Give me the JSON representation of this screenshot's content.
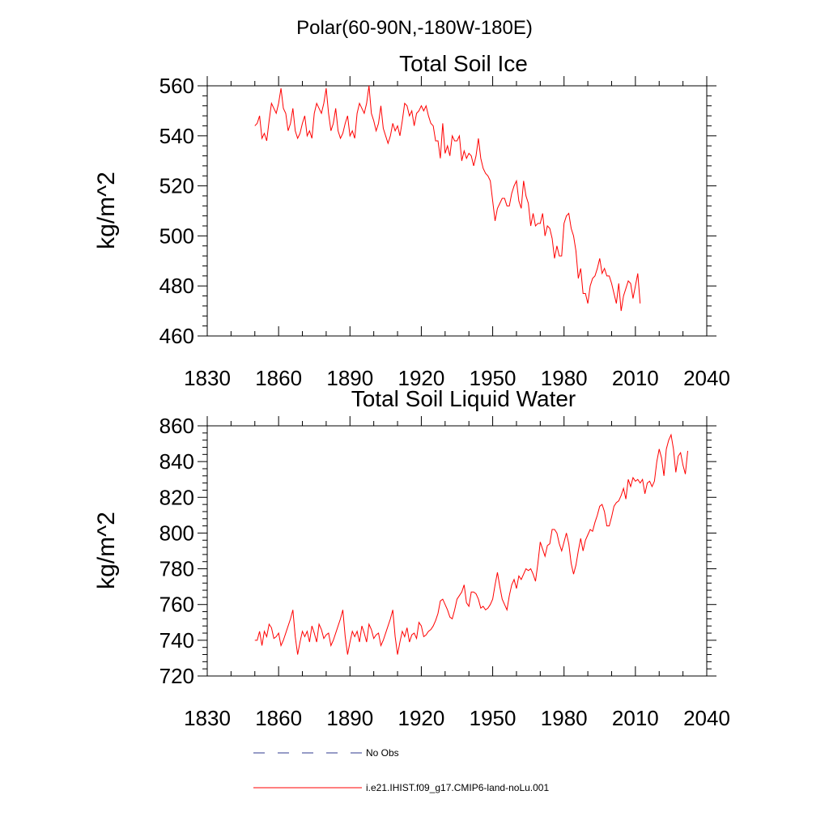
{
  "suptitle": "Polar(60-90N,-180W-180E)",
  "legend": [
    {
      "label": "No Obs",
      "color": "#2f3a8f",
      "dash": true
    },
    {
      "label": "i.e21.IHIST.f09_g17.CMIP6-land-noLu.001",
      "color": "#ff0000",
      "dash": false
    }
  ],
  "chart_data": [
    {
      "type": "line",
      "title": "Total Soil Ice",
      "ylabel": "kg/m^2",
      "xlim": [
        1830,
        2040
      ],
      "ylim": [
        460,
        560
      ],
      "xticks": [
        1830,
        1860,
        1890,
        1920,
        1950,
        1980,
        2010,
        2040
      ],
      "yticks": [
        460,
        480,
        500,
        520,
        540,
        560
      ],
      "series": [
        {
          "color": "#ff0000",
          "x_start": 1850,
          "values": [
            544,
            545,
            548,
            539,
            541,
            538,
            546,
            553,
            551,
            549,
            553,
            559,
            551,
            549,
            542,
            545,
            551,
            542,
            539,
            541,
            545,
            548,
            540,
            542,
            539,
            549,
            553,
            551,
            549,
            553,
            559,
            549,
            542,
            545,
            551,
            542,
            539,
            541,
            545,
            548,
            540,
            542,
            539,
            549,
            553,
            551,
            549,
            553,
            560,
            549,
            546,
            542,
            545,
            552,
            543,
            540,
            537,
            540,
            545,
            542,
            544,
            540,
            546,
            553,
            552,
            548,
            550,
            544,
            549,
            550,
            552,
            550,
            552,
            548,
            545,
            544,
            538,
            538,
            531,
            545,
            533,
            536,
            532,
            540,
            538,
            538,
            540,
            530,
            534,
            531,
            533,
            532,
            528,
            532,
            539,
            531,
            527,
            525,
            524,
            522,
            514,
            506,
            511,
            513,
            515,
            515,
            512,
            512,
            517,
            520,
            522,
            514,
            511,
            522,
            516,
            513,
            504,
            509,
            504,
            505,
            505,
            509,
            500,
            504,
            503,
            499,
            491,
            496,
            492,
            492,
            505,
            508,
            509,
            503,
            500,
            494,
            483,
            487,
            477,
            477,
            473,
            480,
            483,
            484,
            487,
            491,
            485,
            487,
            484,
            484,
            481,
            477,
            473,
            481,
            470,
            476,
            479,
            482,
            481,
            475,
            480,
            485,
            473
          ]
        }
      ]
    },
    {
      "type": "line",
      "title": "Total Soil Liquid Water",
      "ylabel": "kg/m^2",
      "xlim": [
        1830,
        2040
      ],
      "ylim": [
        720,
        860
      ],
      "xticks": [
        1830,
        1860,
        1890,
        1920,
        1950,
        1980,
        2010,
        2040
      ],
      "yticks": [
        720,
        740,
        760,
        780,
        800,
        820,
        840,
        860
      ],
      "series": [
        {
          "color": "#ff0000",
          "x_start": 1850,
          "values": [
            740,
            740,
            745,
            737,
            745,
            742,
            749,
            747,
            741,
            742,
            744,
            737,
            740,
            744,
            748,
            752,
            757,
            742,
            732,
            739,
            745,
            742,
            745,
            739,
            748,
            744,
            739,
            749,
            746,
            741,
            743,
            744,
            737,
            740,
            744,
            748,
            752,
            757,
            742,
            732,
            739,
            745,
            742,
            745,
            739,
            748,
            744,
            739,
            749,
            746,
            741,
            743,
            744,
            737,
            740,
            744,
            748,
            752,
            757,
            742,
            732,
            739,
            745,
            742,
            747,
            739,
            743,
            744,
            741,
            750,
            748,
            742,
            743,
            745,
            746,
            748,
            751,
            755,
            762,
            763,
            760,
            757,
            753,
            752,
            757,
            763,
            765,
            767,
            771,
            761,
            759,
            767,
            767,
            766,
            763,
            758,
            759,
            757,
            758,
            760,
            763,
            771,
            778,
            770,
            763,
            760,
            757,
            765,
            771,
            774,
            769,
            776,
            774,
            777,
            780,
            779,
            780,
            777,
            773,
            783,
            795,
            791,
            787,
            793,
            794,
            802,
            802,
            800,
            794,
            790,
            795,
            800,
            794,
            783,
            777,
            782,
            790,
            797,
            790,
            796,
            799,
            802,
            801,
            806,
            810,
            815,
            816,
            812,
            804,
            804,
            809,
            815,
            817,
            818,
            821,
            825,
            819,
            830,
            826,
            831,
            829,
            830,
            828,
            830,
            822,
            828,
            829,
            826,
            829,
            840,
            847,
            842,
            832,
            847,
            852,
            855,
            847,
            834,
            843,
            845,
            838,
            833,
            846
          ]
        }
      ]
    }
  ]
}
